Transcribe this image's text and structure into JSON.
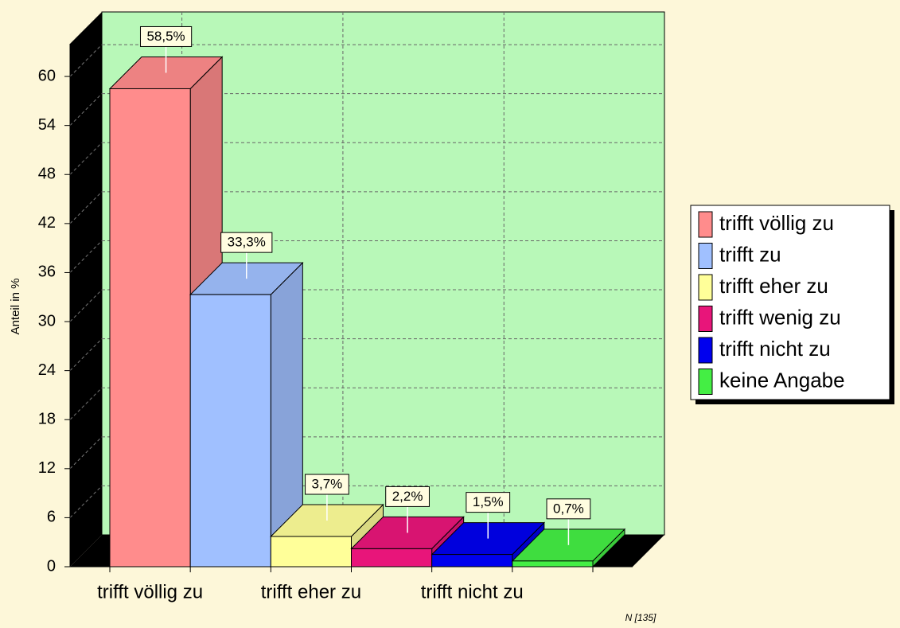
{
  "chart_data": {
    "type": "bar3d",
    "y_label": "Anteil in %",
    "footnote": "N [135]",
    "categories": [
      "trifft völlig zu",
      null,
      "trifft eher zu",
      null,
      "trifft nicht zu",
      null
    ],
    "series": [
      {
        "name": "trifft völlig zu",
        "color": "#ff8c8c",
        "values": [
          58.5,
          null,
          null,
          null,
          null,
          null
        ],
        "value_labels": [
          "58,5%",
          null,
          null,
          null,
          null,
          null
        ]
      },
      {
        "name": "trifft zu",
        "color": "#a0c0ff",
        "values": [
          null,
          33.3,
          null,
          null,
          null,
          null
        ],
        "value_labels": [
          null,
          "33,3%",
          null,
          null,
          null,
          null
        ]
      },
      {
        "name": "trifft eher zu",
        "color": "#ffff99",
        "values": [
          null,
          null,
          3.7,
          null,
          null,
          null
        ],
        "value_labels": [
          null,
          null,
          "3,7%",
          null,
          null,
          null
        ]
      },
      {
        "name": "trifft wenig zu",
        "color": "#e8157a",
        "values": [
          null,
          null,
          null,
          2.2,
          null,
          null
        ],
        "value_labels": [
          null,
          null,
          null,
          "2,2%",
          null,
          null
        ]
      },
      {
        "name": "trifft nicht zu",
        "color": "#0000ee",
        "values": [
          null,
          null,
          null,
          null,
          1.5,
          null
        ],
        "value_labels": [
          null,
          null,
          null,
          null,
          "1,5%",
          null
        ]
      },
      {
        "name": "keine Angabe",
        "color": "#44ee44",
        "values": [
          null,
          null,
          null,
          null,
          null,
          0.7
        ],
        "value_labels": [
          null,
          null,
          null,
          null,
          null,
          "0,7%"
        ]
      }
    ],
    "ylim": [
      0,
      64
    ],
    "yticks": [
      0,
      6,
      12,
      18,
      24,
      30,
      36,
      42,
      48,
      54,
      60
    ],
    "grid": true,
    "legend": "right"
  }
}
